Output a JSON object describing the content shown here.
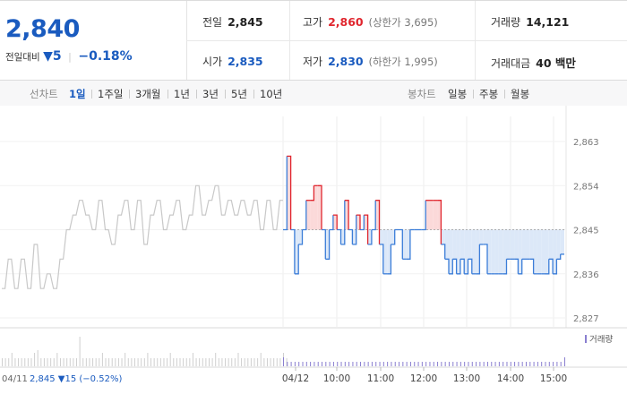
{
  "summary": {
    "price": "2,840",
    "change_label": "전일대비",
    "change_value": "5",
    "change_pct": "−0.18%",
    "prev_label": "전일",
    "prev_value": "2,845",
    "high_label": "고가",
    "high_value": "2,860",
    "upper_limit": "(상한가 3,695)",
    "volume_label": "거래량",
    "volume_value": "14,121",
    "open_label": "시가",
    "open_value": "2,835",
    "low_label": "저가",
    "low_value": "2,830",
    "lower_limit": "(하한가 1,995)",
    "amount_label": "거래대금",
    "amount_value": "40 백만"
  },
  "toolbar": {
    "line_label": "선차트",
    "line_periods": [
      "1일",
      "1주일",
      "3개월",
      "1년",
      "3년",
      "5년",
      "10년"
    ],
    "line_active": "1일",
    "candle_label": "봉차트",
    "candle_periods": [
      "일봉",
      "주봉",
      "월봉"
    ]
  },
  "chart_data": {
    "type": "line",
    "y_ticks": [
      "2,863",
      "2,854",
      "2,845",
      "2,836",
      "2,827"
    ],
    "y_range": [
      2824,
      2866
    ],
    "baseline": 2845,
    "x_labels": [
      "04/12",
      "10:00",
      "11:00",
      "12:00",
      "13:00",
      "14:00",
      "15:00"
    ],
    "prev_day_label": "04/11",
    "prev_day_summary": "2,845 ▼15 (−0.52%)",
    "volume_legend": "거래량",
    "prev_series": [
      2833,
      2833,
      2839,
      2839,
      2833,
      2833,
      2839,
      2839,
      2833,
      2833,
      2842,
      2842,
      2833,
      2833,
      2836,
      2836,
      2833,
      2833,
      2839,
      2839,
      2845,
      2845,
      2848,
      2848,
      2851,
      2851,
      2848,
      2848,
      2845,
      2845,
      2851,
      2851,
      2845,
      2845,
      2842,
      2842,
      2848,
      2848,
      2851,
      2851,
      2845,
      2845,
      2851,
      2851,
      2842,
      2842,
      2848,
      2848,
      2851,
      2851,
      2845,
      2845,
      2848,
      2848,
      2851,
      2851,
      2845,
      2845,
      2848,
      2848,
      2854,
      2854,
      2848,
      2848,
      2851,
      2851,
      2854,
      2854,
      2848,
      2848,
      2851,
      2851,
      2848,
      2848,
      2851,
      2851,
      2848,
      2848,
      2851,
      2851,
      2845,
      2845,
      2851,
      2851,
      2845,
      2845,
      2851,
      2851
    ],
    "today_series": [
      2845,
      2860,
      2845,
      2836,
      2842,
      2845,
      2851,
      2851,
      2854,
      2854,
      2845,
      2839,
      2845,
      2848,
      2845,
      2842,
      2851,
      2845,
      2842,
      2848,
      2845,
      2848,
      2842,
      2845,
      2851,
      2842,
      2836,
      2836,
      2842,
      2845,
      2845,
      2839,
      2839,
      2845,
      2845,
      2845,
      2845,
      2851,
      2851,
      2851,
      2851,
      2842,
      2839,
      2836,
      2839,
      2836,
      2839,
      2836,
      2839,
      2836,
      2836,
      2842,
      2842,
      2836,
      2836,
      2836,
      2836,
      2836,
      2839,
      2839,
      2839,
      2836,
      2839,
      2839,
      2839,
      2836,
      2836,
      2836,
      2836,
      2839,
      2836,
      2839,
      2840,
      2840
    ],
    "prev_volume": [
      1,
      1,
      1,
      1,
      1,
      1,
      1,
      1,
      1,
      1,
      1,
      2,
      1,
      1,
      1,
      1,
      1,
      1,
      1,
      1,
      1,
      1,
      1,
      1,
      3,
      1,
      1,
      1,
      1,
      1,
      1,
      1,
      1,
      1,
      1,
      1,
      1,
      1,
      1,
      1,
      1,
      1,
      1,
      1,
      1,
      1,
      1,
      1,
      1,
      1,
      1,
      1,
      1,
      1,
      1,
      1,
      1,
      1,
      1,
      1,
      1,
      1,
      1,
      1,
      1,
      1,
      1,
      1,
      1,
      1,
      1,
      1,
      1,
      1,
      1,
      1,
      1,
      1,
      1,
      1,
      1,
      1,
      1,
      1,
      1,
      1,
      1,
      1,
      1
    ],
    "today_volume": [
      2,
      1,
      1,
      1,
      1,
      1,
      1,
      1,
      1,
      1,
      1,
      1,
      1,
      1,
      1,
      1,
      1,
      1,
      1,
      1,
      1,
      1,
      1,
      1,
      1,
      1,
      1,
      1,
      1,
      1,
      1,
      1,
      1,
      1,
      1,
      1,
      1,
      1,
      1,
      1,
      1,
      1,
      1,
      1,
      1,
      1,
      1,
      1,
      1,
      1,
      1,
      1,
      1,
      1,
      1,
      1,
      1,
      1,
      1,
      1,
      1,
      1,
      1,
      1,
      1,
      1,
      1,
      1,
      1,
      1,
      1,
      1,
      1,
      2
    ],
    "colors": {
      "up": "#e0262e",
      "down": "#3b7dd8",
      "prev": "#c8c8c8",
      "up_fill": "#fbd9d9",
      "down_fill": "#dce8f8"
    }
  }
}
